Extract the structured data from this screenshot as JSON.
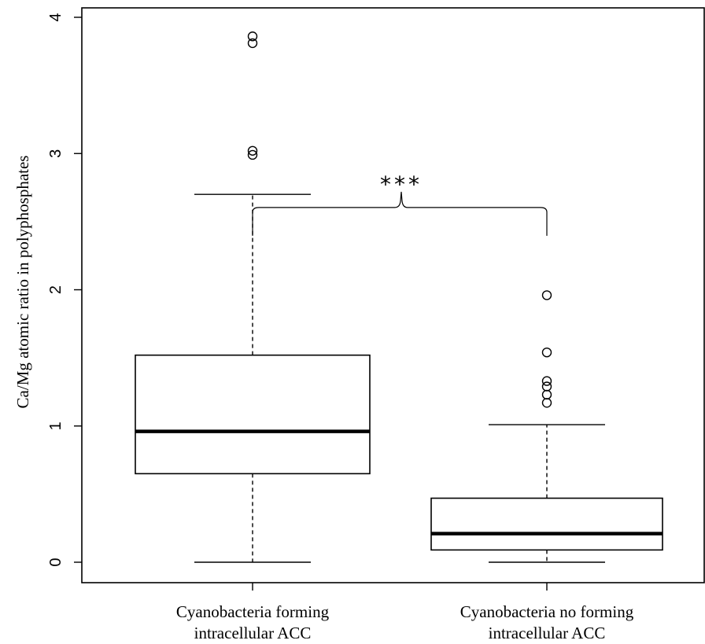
{
  "chart_data": {
    "type": "box",
    "ylabel": "Ca/Mg atomic ratio in polyphosphates",
    "xlabel": "",
    "ylim": [
      0,
      4
    ],
    "yticks": [
      "0",
      "1",
      "2",
      "3",
      "4"
    ],
    "grid": false,
    "categories": [
      [
        "Cyanobacteria forming",
        "intracellular ACC"
      ],
      [
        "Cyanobacteria no forming",
        "intracellular ACC"
      ]
    ],
    "boxes": [
      {
        "whisker_low": 0.0,
        "q1": 0.65,
        "median": 0.96,
        "q3": 1.52,
        "whisker_high": 2.7,
        "outliers": [
          3.86,
          3.81,
          3.02,
          2.99
        ]
      },
      {
        "whisker_low": 0.0,
        "q1": 0.09,
        "median": 0.21,
        "q3": 0.47,
        "whisker_high": 1.01,
        "outliers": [
          1.96,
          1.54,
          1.33,
          1.29,
          1.23,
          1.17
        ]
      }
    ],
    "annotation": {
      "text": "***",
      "y": 2.5
    }
  }
}
